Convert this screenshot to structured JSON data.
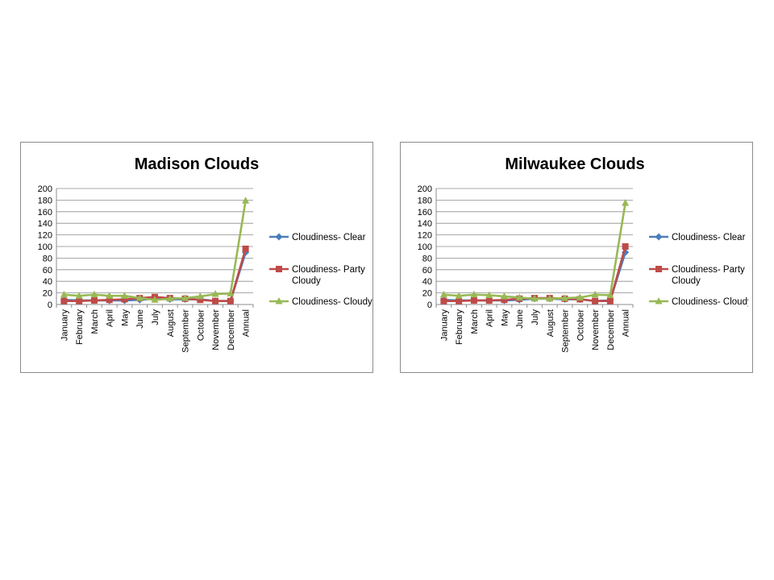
{
  "chart_data": [
    {
      "type": "line",
      "title": "Madison Clouds",
      "xlabel": "",
      "ylabel": "",
      "ylim": [
        0,
        200
      ],
      "yticks": [
        0,
        20,
        40,
        60,
        80,
        100,
        120,
        140,
        160,
        180,
        200
      ],
      "grid": true,
      "legend_position": "right",
      "categories": [
        "January",
        "February",
        "March",
        "April",
        "May",
        "June",
        "July",
        "August",
        "September",
        "October",
        "November",
        "December",
        "Annual"
      ],
      "series": [
        {
          "name": "Cloudiness- Clear",
          "color": "#4a7ebb",
          "marker": "diamond",
          "values": [
            8,
            7,
            7,
            7,
            7,
            8,
            10,
            9,
            9,
            9,
            6,
            6,
            90
          ]
        },
        {
          "name": "Cloudiness- Party Cloudy",
          "color": "#be4b48",
          "marker": "square",
          "values": [
            6,
            6,
            7,
            8,
            9,
            11,
            13,
            11,
            10,
            8,
            6,
            6,
            96
          ]
        },
        {
          "name": "Cloudiness- Cloudy",
          "color": "#98b954",
          "marker": "triangle",
          "values": [
            17,
            15,
            17,
            15,
            15,
            11,
            8,
            10,
            11,
            14,
            18,
            19,
            179
          ]
        }
      ]
    },
    {
      "type": "line",
      "title": "Milwaukee Clouds",
      "xlabel": "",
      "ylabel": "",
      "ylim": [
        0,
        200
      ],
      "yticks": [
        0,
        20,
        40,
        60,
        80,
        100,
        120,
        140,
        160,
        180,
        200
      ],
      "grid": true,
      "legend_position": "right",
      "categories": [
        "January",
        "February",
        "March",
        "April",
        "May",
        "June",
        "July",
        "August",
        "September",
        "October",
        "November",
        "December",
        "Annual"
      ],
      "series": [
        {
          "name": "Cloudiness- Clear",
          "color": "#4a7ebb",
          "marker": "diamond",
          "values": [
            8,
            7,
            7,
            7,
            7,
            8,
            10,
            10,
            9,
            9,
            6,
            7,
            90
          ]
        },
        {
          "name": "Cloudiness- Party Cloudy",
          "color": "#be4b48",
          "marker": "square",
          "values": [
            6,
            6,
            7,
            7,
            8,
            10,
            11,
            11,
            10,
            9,
            6,
            6,
            100
          ]
        },
        {
          "name": "Cloudiness- Cloudy",
          "color": "#98b954",
          "marker": "triangle",
          "values": [
            17,
            15,
            17,
            16,
            14,
            12,
            10,
            10,
            11,
            12,
            17,
            16,
            175
          ]
        }
      ]
    }
  ]
}
